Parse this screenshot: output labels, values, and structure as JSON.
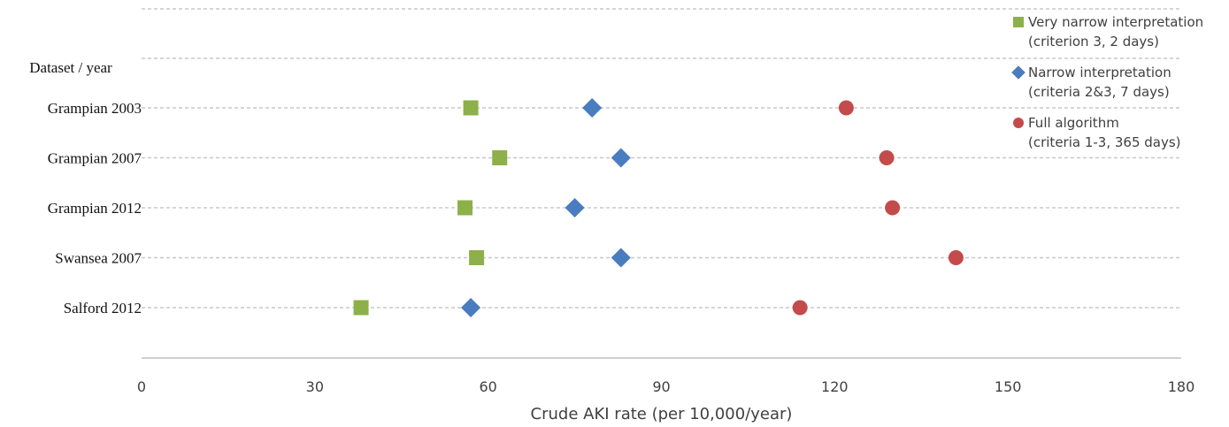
{
  "chart_data": {
    "type": "scatter",
    "orientation": "horizontal",
    "title": "",
    "xlabel": "Crude AKI rate (per 10,000/year)",
    "ylabel": "Dataset / year",
    "xlim": [
      0,
      180
    ],
    "xticks": [
      "0",
      "30",
      "60",
      "90",
      "120",
      "150",
      "180"
    ],
    "categories": [
      "Grampian 2003",
      "Grampian 2007",
      "Grampian 2012",
      "Swansea 2007",
      "Salford 2012"
    ],
    "grid": true,
    "legend_position": "top-right",
    "series": [
      {
        "name": "Very narrow interpretation",
        "name_line2": "(criterion 3, 2 days)",
        "marker": "square",
        "color": "#8db04a",
        "values": [
          57,
          62,
          56,
          58,
          38
        ]
      },
      {
        "name": "Narrow interpretation",
        "name_line2": "(criteria 2&3, 7 days)",
        "marker": "diamond",
        "color": "#4a7cc0",
        "values": [
          78,
          83,
          75,
          83,
          57
        ]
      },
      {
        "name": "Full algorithm",
        "name_line2": "(criteria 1-3, 365 days)",
        "marker": "circle",
        "color": "#c44b4b",
        "values": [
          122,
          129,
          130,
          141,
          114
        ]
      }
    ]
  }
}
